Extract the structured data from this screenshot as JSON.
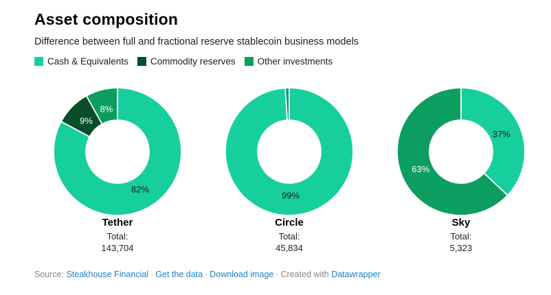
{
  "header": {
    "title": "Asset composition",
    "subtitle": "Difference between full and fractional reserve stablecoin business models"
  },
  "legend": {
    "items": [
      {
        "label": "Cash & Equivalents",
        "color": "#17CF9C"
      },
      {
        "label": "Commodity reserves",
        "color": "#0A4D29"
      },
      {
        "label": "Other investments",
        "color": "#0B9E60"
      }
    ]
  },
  "chart_data": {
    "type": "pie",
    "variant": "donut",
    "unit": "%",
    "legend_position": "top",
    "pies": [
      {
        "name": "Tether",
        "total_label": "Total:",
        "total_value": "143,704",
        "slices": [
          {
            "category": "Cash & Equivalents",
            "value": 82,
            "label": "82%",
            "color": "#17CF9C",
            "label_color": "#1a1a1a"
          },
          {
            "category": "Commodity reserves",
            "value": 9,
            "label": "9%",
            "color": "#0A4D29",
            "label_color": "#ffffff"
          },
          {
            "category": "Other investments",
            "value": 8,
            "label": "8%",
            "color": "#0B9E60",
            "label_color": "#ffffff"
          }
        ]
      },
      {
        "name": "Circle",
        "total_label": "Total:",
        "total_value": "45,834",
        "slices": [
          {
            "category": "Cash & Equivalents",
            "value": 99,
            "label": "99%",
            "color": "#17CF9C",
            "label_color": "#1a1a1a"
          },
          {
            "category": "Other investments",
            "value": 1,
            "label": "",
            "color": "#0B9E60",
            "label_color": "#ffffff"
          }
        ]
      },
      {
        "name": "Sky",
        "total_label": "Total:",
        "total_value": "5,323",
        "slices": [
          {
            "category": "Cash & Equivalents",
            "value": 37,
            "label": "37%",
            "color": "#17CF9C",
            "label_color": "#1a1a1a"
          },
          {
            "category": "Other investments",
            "value": 63,
            "label": "63%",
            "color": "#0B9E60",
            "label_color": "#ffffff"
          }
        ]
      }
    ]
  },
  "footer": {
    "source_prefix": "Source: ",
    "source_link": "Steakhouse Financial",
    "separator": "·",
    "link_get_data": "Get the data",
    "link_download": "Download image",
    "created_prefix": "Created with ",
    "created_link": "Datawrapper",
    "link_color": "#1D80C9"
  }
}
